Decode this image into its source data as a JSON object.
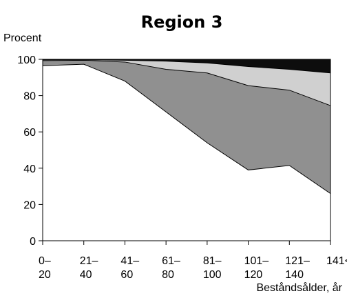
{
  "chart_data": {
    "type": "area",
    "stacked": true,
    "title": "Region 3",
    "ylabel": "Procent",
    "xlabel": "Beståndsålder, år",
    "ylim": [
      0,
      100
    ],
    "yticks": [
      0,
      20,
      40,
      60,
      80,
      100
    ],
    "categories": [
      [
        "0–",
        "20"
      ],
      [
        "21–",
        "40"
      ],
      [
        "41–",
        "60"
      ],
      [
        "61–",
        "80"
      ],
      [
        "81–",
        "100"
      ],
      [
        "101–",
        "120"
      ],
      [
        "121–",
        "140"
      ],
      [
        "141<",
        ""
      ]
    ],
    "boundaries": [
      [
        96.5,
        99.3,
        99.7,
        100
      ],
      [
        97.3,
        99.5,
        99.8,
        100
      ],
      [
        88,
        98.5,
        99.5,
        100
      ],
      [
        71,
        94.5,
        99,
        100
      ],
      [
        54,
        92.5,
        98,
        100
      ],
      [
        39,
        85.5,
        96,
        100
      ],
      [
        41.5,
        83,
        94.5,
        100
      ],
      [
        26,
        74.5,
        92.5,
        100
      ]
    ],
    "series_colors": [
      "#ffffff",
      "#909090",
      "#d0d0d0",
      "#0d0d0d"
    ],
    "grid": false
  }
}
